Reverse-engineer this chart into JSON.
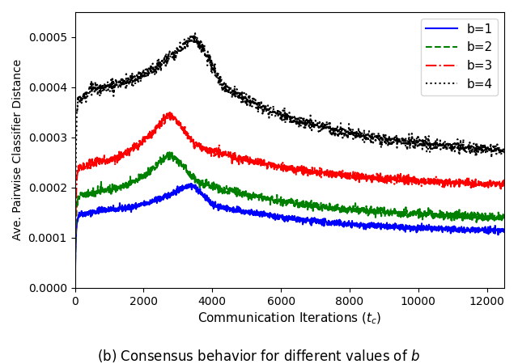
{
  "title": "",
  "xlabel": "Communication Iterations ($t_c$)",
  "ylabel": "Ave. Pairwise Classifier Distance",
  "caption": "(b) Consensus behavior for different values of $b$",
  "xlim": [
    0,
    12500
  ],
  "ylim": [
    0,
    0.00055
  ],
  "yticks": [
    0.0,
    0.0001,
    0.0002,
    0.0003,
    0.0004,
    0.0005
  ],
  "xticks": [
    0,
    2000,
    4000,
    6000,
    8000,
    10000,
    12000
  ],
  "legend_labels": [
    "b=1",
    "b=2",
    "b=3",
    "b=4"
  ],
  "colors": [
    "blue",
    "green",
    "red",
    "black"
  ],
  "linestyles": [
    "-",
    "--",
    "-.",
    ":"
  ],
  "linewidths": [
    1.5,
    1.5,
    1.5,
    1.5
  ],
  "figsize": [
    6.4,
    4.5
  ],
  "dpi": 100,
  "curve_params": [
    {
      "plateau_y": 0.000148,
      "peak_y": 0.000205,
      "settle_y": 0.00011,
      "rise_x": 350,
      "plateau_x": 800,
      "peak_x": 3300,
      "drop_x": 4200,
      "noise": 3e-06
    },
    {
      "plateau_y": 0.000185,
      "peak_y": 0.000265,
      "settle_y": 0.000135,
      "rise_x": 350,
      "plateau_x": 700,
      "peak_x": 2700,
      "drop_x": 3800,
      "noise": 4e-06
    },
    {
      "plateau_y": 0.00024,
      "peak_y": 0.000345,
      "settle_y": 0.0002,
      "rise_x": 300,
      "plateau_x": 600,
      "peak_x": 2700,
      "drop_x": 3700,
      "noise": 4e-06
    },
    {
      "plateau_y": 0.00038,
      "peak_y": 0.0005,
      "settle_y": 0.000265,
      "rise_x": 280,
      "plateau_x": 500,
      "peak_x": 3400,
      "drop_x": 4500,
      "noise": 6e-06
    }
  ]
}
